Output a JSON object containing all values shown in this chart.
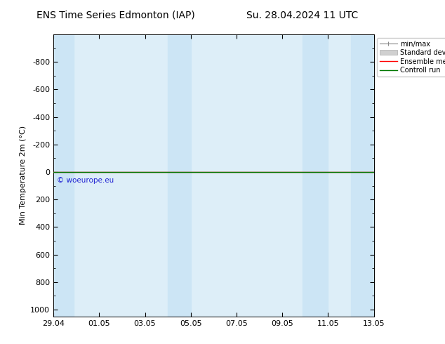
{
  "title_left": "ENS Time Series Edmonton (IAP)",
  "title_right": "Su. 28.04.2024 11 UTC",
  "ylabel": "Min Temperature 2m (°C)",
  "ylim_top": -1000,
  "ylim_bottom": 1050,
  "yticks": [
    -800,
    -600,
    -400,
    -200,
    0,
    200,
    400,
    600,
    800,
    1000
  ],
  "xtick_labels": [
    "29.04",
    "01.05",
    "03.05",
    "05.05",
    "07.05",
    "09.05",
    "11.05",
    "13.05"
  ],
  "xtick_positions": [
    0,
    2,
    4,
    6,
    8,
    10,
    12,
    14
  ],
  "watermark": "© woeurope.eu",
  "legend_labels": [
    "min/max",
    "Standard deviation",
    "Ensemble mean run",
    "Controll run"
  ],
  "bg_color": "#ffffff",
  "plot_bg_color": "#ddeef8",
  "shaded_bands": [
    [
      0,
      0.9
    ],
    [
      5.0,
      6.0
    ],
    [
      10.9,
      12.0
    ],
    [
      13.0,
      14.0
    ]
  ],
  "band_color": "#cce5f5",
  "line_color_green": "#007700",
  "line_color_red": "#ff0000",
  "title_fontsize": 10,
  "axis_fontsize": 8,
  "tick_fontsize": 8,
  "legend_outside": true
}
